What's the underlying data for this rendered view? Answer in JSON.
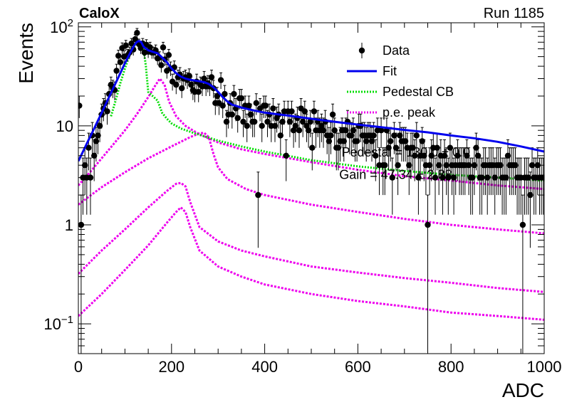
{
  "chart_data": {
    "type": "scatter",
    "title": "",
    "top_left_label": "CaloX",
    "top_right_label": "Run 1185",
    "xlabel": "ADC",
    "ylabel": "Events",
    "xlim": [
      0,
      1000
    ],
    "ylim": [
      0.05,
      110
    ],
    "yscale": "log",
    "grid": false,
    "legend_position": "top-right",
    "x_ticks": [
      0,
      200,
      400,
      600,
      800,
      1000
    ],
    "y_ticks": [
      {
        "value": 0.1,
        "base": "10",
        "exp": "−1"
      },
      {
        "value": 1,
        "base": "1",
        "exp": ""
      },
      {
        "value": 10,
        "base": "10",
        "exp": ""
      },
      {
        "value": 100,
        "base": "10",
        "exp": "2"
      }
    ],
    "colors": {
      "data": "#000000",
      "fit": "#0000ee",
      "pedestal": "#00dd00",
      "pe": "#ee00ee"
    },
    "annotations": [
      {
        "text": "Pedestal = 130.0 ± 0.0",
        "x": 565,
        "y": 4.9
      },
      {
        "text": "Gain = 47.34 ± 2.88",
        "x": 560,
        "y": 2.9
      }
    ],
    "series": [
      {
        "name": "Data",
        "style": "points",
        "color": "#000000"
      },
      {
        "name": "Fit",
        "style": "solid-line",
        "color": "#0000ee"
      },
      {
        "name": "Pedestal CB",
        "style": "dotted-line",
        "color": "#00dd00"
      },
      {
        "name": "p.e. peak",
        "style": "dotted-line",
        "color": "#ee00ee"
      }
    ],
    "points_x": [
      2,
      6,
      10,
      14,
      18,
      22,
      26,
      30,
      34,
      38,
      42,
      46,
      50,
      54,
      58,
      62,
      66,
      70,
      74,
      78,
      82,
      86,
      90,
      94,
      98,
      102,
      106,
      110,
      114,
      118,
      122,
      126,
      130,
      134,
      138,
      142,
      146,
      150,
      154,
      158,
      162,
      166,
      170,
      174,
      178,
      182,
      186,
      190,
      194,
      198,
      202,
      206,
      210,
      214,
      218,
      222,
      226,
      230,
      234,
      238,
      242,
      246,
      250,
      254,
      258,
      262,
      266,
      270,
      274,
      278,
      282,
      286,
      290,
      294,
      298,
      302,
      306,
      310,
      314,
      318,
      322,
      326,
      330,
      334,
      338,
      342,
      346,
      350,
      354,
      358,
      362,
      366,
      370,
      374,
      378,
      382,
      386,
      390,
      394,
      398,
      402,
      406,
      410,
      414,
      418,
      422,
      426,
      430,
      434,
      438,
      442,
      446,
      450,
      454,
      458,
      462,
      466,
      470,
      474,
      478,
      482,
      486,
      490,
      494,
      498,
      502,
      506,
      510,
      514,
      518,
      522,
      526,
      530,
      534,
      538,
      542,
      546,
      550,
      554,
      558,
      562,
      566,
      570,
      574,
      578,
      582,
      586,
      590,
      594,
      598,
      602,
      606,
      610,
      614,
      618,
      622,
      626,
      630,
      634,
      638,
      642,
      646,
      650,
      654,
      658,
      662,
      666,
      670,
      674,
      678,
      682,
      686,
      690,
      694,
      698,
      702,
      706,
      710,
      714,
      718,
      722,
      726,
      730,
      734,
      738,
      742,
      746,
      750,
      754,
      758,
      762,
      766,
      770,
      774,
      778,
      782,
      786,
      790,
      794,
      798,
      802,
      806,
      810,
      814,
      818,
      822,
      826,
      830,
      834,
      838,
      842,
      846,
      850,
      854,
      858,
      862,
      866,
      870,
      874,
      878,
      882,
      886,
      890,
      894,
      898,
      902,
      906,
      910,
      914,
      918,
      922,
      926,
      930,
      934,
      938,
      942,
      946,
      950,
      954,
      958,
      962,
      966,
      970,
      974,
      978,
      982,
      986,
      990,
      994,
      998
    ],
    "points_y": [
      16,
      1,
      3,
      4,
      3,
      6,
      3,
      8,
      5,
      7,
      8,
      10,
      13,
      15,
      17,
      14,
      21,
      26,
      24,
      23,
      36,
      51,
      44,
      61,
      50,
      65,
      52,
      55,
      68,
      59,
      75,
      87,
      67,
      61,
      68,
      55,
      66,
      56,
      62,
      55,
      55,
      58,
      48,
      49,
      41,
      62,
      47,
      36,
      52,
      38,
      28,
      39,
      26,
      31,
      33,
      24,
      30,
      31,
      29,
      32,
      26,
      23,
      22,
      28,
      22,
      26,
      25,
      30,
      25,
      27,
      25,
      31,
      24,
      17,
      20,
      17,
      29,
      16,
      21,
      11,
      13,
      17,
      13,
      21,
      15,
      12,
      19,
      19,
      11,
      16,
      10,
      16,
      13,
      11,
      11,
      17,
      2,
      15,
      10,
      16,
      16,
      11,
      13,
      10,
      15,
      10,
      12,
      13,
      8,
      11,
      14,
      5,
      14,
      11,
      14,
      9,
      10,
      12,
      9,
      15,
      11,
      14,
      10,
      9,
      11,
      6,
      14,
      9,
      11,
      9,
      10,
      9,
      11,
      8,
      7,
      8,
      13,
      9,
      6,
      6,
      7,
      9,
      7,
      9,
      11,
      8,
      8,
      9,
      7,
      7,
      10,
      10,
      8,
      8,
      7,
      8,
      8,
      7,
      8,
      5,
      9,
      4,
      9,
      4,
      4,
      9,
      6,
      7,
      3,
      8,
      6,
      4,
      8,
      7,
      7,
      7,
      6,
      4,
      6,
      6,
      5,
      8,
      3,
      5,
      7,
      5,
      4,
      1,
      4,
      5,
      6,
      3,
      6,
      4,
      5,
      3,
      5,
      4,
      3,
      6,
      4,
      3,
      4,
      5,
      4,
      4,
      4,
      4,
      5,
      4,
      3,
      3,
      4,
      6,
      5,
      3,
      3,
      4,
      4,
      3,
      4,
      4,
      4,
      3,
      4,
      4,
      4,
      3,
      3,
      3,
      5,
      4,
      4,
      4,
      4,
      3,
      3,
      3,
      1,
      3,
      3,
      3,
      2,
      4,
      3,
      3,
      4,
      3,
      3,
      3,
      5
    ],
    "fit_x": [
      0,
      10,
      20,
      30,
      40,
      50,
      60,
      70,
      80,
      90,
      100,
      110,
      115,
      120,
      125,
      130,
      135,
      140,
      150,
      160,
      170,
      180,
      190,
      200,
      210,
      220,
      230,
      240,
      250,
      260,
      270,
      280,
      290,
      300,
      310,
      320,
      330,
      350,
      380,
      400,
      450,
      500,
      550,
      600,
      650,
      700,
      750,
      800,
      850,
      900,
      950,
      1000
    ],
    "fit_y": [
      4.4,
      5.5,
      6.9,
      8.6,
      10.8,
      13.5,
      17,
      21.5,
      27,
      34,
      43,
      53,
      59,
      65,
      70,
      72,
      70,
      63,
      58,
      56,
      54,
      49,
      44,
      38,
      34,
      31.5,
      30,
      29.2,
      28.7,
      28.2,
      27.6,
      26.5,
      24.5,
      22,
      19.5,
      17.6,
      16.4,
      15.3,
      14.2,
      13.6,
      12.7,
      11.8,
      11,
      10.3,
      9.7,
      9.1,
      8.6,
      8,
      7.5,
      6.9,
      6.2,
      5.5
    ],
    "pedestal_x": [
      70,
      80,
      90,
      100,
      110,
      120,
      125,
      130,
      135,
      140,
      145,
      150,
      170,
      180,
      190,
      200,
      220,
      250,
      300,
      350,
      400,
      500,
      600,
      700,
      800,
      900,
      1000
    ],
    "pedestal_y": [
      12.5,
      18,
      27,
      38,
      52,
      64,
      70,
      72,
      70,
      60,
      40,
      22,
      18,
      13.5,
      11.8,
      10.6,
      9.4,
      8.4,
      7.1,
      6.2,
      5.5,
      4.5,
      3.9,
      3.5,
      3.2,
      3,
      2.8
    ],
    "pe_peaks": [
      {
        "x": [
          0,
          25,
          50,
          75,
          100,
          125,
          150,
          165,
          175,
          185,
          195,
          210,
          230,
          260,
          300,
          350,
          400,
          500,
          600,
          700,
          800,
          900,
          1000
        ],
        "y": [
          2.5,
          3.4,
          4.7,
          6.5,
          9,
          13,
          19.5,
          25.5,
          30,
          26,
          17.5,
          12.5,
          10,
          8.2,
          6.8,
          5.8,
          5.2,
          4.3,
          3.6,
          3.1,
          2.8,
          2.5,
          2.3
        ]
      },
      {
        "x": [
          0,
          50,
          100,
          150,
          200,
          240,
          260,
          270,
          280,
          290,
          300,
          320,
          360,
          400,
          500,
          600,
          700,
          800,
          900,
          1000
        ],
        "y": [
          1.6,
          2.4,
          3.4,
          4.7,
          6.2,
          7.7,
          8.4,
          8.5,
          7.7,
          5.2,
          3.8,
          2.9,
          2.3,
          2,
          1.6,
          1.35,
          1.15,
          1,
          0.9,
          0.82
        ]
      },
      {
        "x": [
          0,
          50,
          100,
          150,
          190,
          210,
          220,
          230,
          240,
          260,
          300,
          350,
          400,
          500,
          600,
          700,
          800,
          900,
          1000
        ],
        "y": [
          0.32,
          0.55,
          0.9,
          1.5,
          2.2,
          2.6,
          2.65,
          2.45,
          1.7,
          0.95,
          0.68,
          0.55,
          0.48,
          0.38,
          0.33,
          0.29,
          0.26,
          0.23,
          0.21
        ]
      },
      {
        "x": [
          0,
          50,
          100,
          150,
          190,
          210,
          220,
          230,
          240,
          260,
          300,
          350,
          400,
          500,
          600,
          700,
          800,
          900,
          1000
        ],
        "y": [
          0.12,
          0.2,
          0.35,
          0.62,
          1.05,
          1.35,
          1.5,
          1.35,
          0.95,
          0.55,
          0.38,
          0.3,
          0.25,
          0.2,
          0.17,
          0.15,
          0.13,
          0.12,
          0.11
        ]
      }
    ]
  }
}
